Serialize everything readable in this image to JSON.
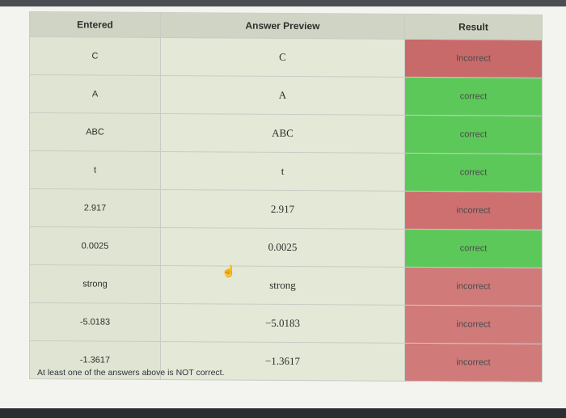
{
  "table": {
    "headers": [
      "Entered",
      "Answer Preview",
      "Result"
    ],
    "rows": [
      {
        "entered": "C",
        "preview": "C",
        "result": "Incorrect",
        "status_color": "#c96a6a"
      },
      {
        "entered": "A",
        "preview": "A",
        "result": "correct",
        "status_color": "#5cc85a"
      },
      {
        "entered": "ABC",
        "preview": "ABC",
        "result": "correct",
        "status_color": "#5cc85a"
      },
      {
        "entered": "t",
        "preview": "t",
        "result": "correct",
        "status_color": "#5cc85a"
      },
      {
        "entered": "2.917",
        "preview": "2.917",
        "result": "incorrect",
        "status_color": "#cf7070"
      },
      {
        "entered": "0.0025",
        "preview": "0.0025",
        "result": "correct",
        "status_color": "#5cc85a"
      },
      {
        "entered": "strong",
        "preview": "strong",
        "result": "incorrect",
        "status_color": "#d07a7a"
      },
      {
        "entered": "-5.0183",
        "preview": "−5.0183",
        "result": "incorrect",
        "status_color": "#d07a7a"
      },
      {
        "entered": "-1.3617",
        "preview": "−1.3617",
        "result": "incorrect",
        "status_color": "#d07a7a"
      }
    ]
  },
  "message": "At least one of the answers above is NOT correct."
}
